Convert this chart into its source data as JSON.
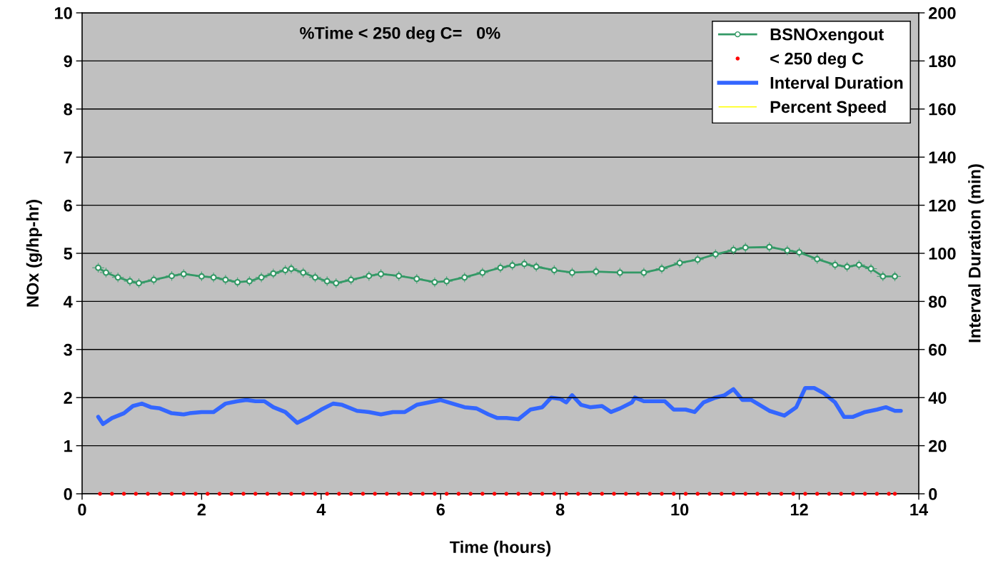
{
  "chart_data": {
    "type": "line",
    "xlabel": "Time (hours)",
    "ylabel": "NOx (g/hp-hr)",
    "y2label": "Interval Duration (min)",
    "annotations": [
      "%Time < 250 deg C=   0%"
    ],
    "xlim": [
      0,
      14
    ],
    "xticks": [
      0,
      2,
      4,
      6,
      8,
      10,
      12,
      14
    ],
    "ylim": [
      0,
      10
    ],
    "yticks": [
      0,
      1,
      2,
      3,
      4,
      5,
      6,
      7,
      8,
      9,
      10
    ],
    "y2lim": [
      0,
      200
    ],
    "y2ticks": [
      0,
      20,
      40,
      60,
      80,
      100,
      120,
      140,
      160,
      180,
      200
    ],
    "grid": "y",
    "legend": "top right",
    "series": [
      {
        "name": "BSNOxengout",
        "color": "#339966",
        "marker": "circle",
        "x": [
          0.27,
          0.4,
          0.6,
          0.8,
          0.95,
          1.2,
          1.5,
          1.7,
          2.0,
          2.2,
          2.4,
          2.6,
          2.8,
          3.0,
          3.2,
          3.4,
          3.5,
          3.7,
          3.9,
          4.1,
          4.25,
          4.5,
          4.8,
          5.0,
          5.3,
          5.6,
          5.9,
          6.1,
          6.4,
          6.7,
          7.0,
          7.2,
          7.4,
          7.6,
          7.9,
          8.2,
          8.6,
          9.0,
          9.4,
          9.7,
          10.0,
          10.3,
          10.6,
          10.9,
          11.1,
          11.5,
          11.8,
          12.0,
          12.3,
          12.6,
          12.8,
          13.0,
          13.2,
          13.4,
          13.6
        ],
        "values": [
          4.7,
          4.6,
          4.5,
          4.42,
          4.38,
          4.45,
          4.53,
          4.57,
          4.52,
          4.5,
          4.45,
          4.4,
          4.42,
          4.5,
          4.58,
          4.65,
          4.68,
          4.6,
          4.5,
          4.42,
          4.38,
          4.45,
          4.53,
          4.57,
          4.53,
          4.47,
          4.4,
          4.42,
          4.5,
          4.6,
          4.7,
          4.75,
          4.78,
          4.72,
          4.65,
          4.6,
          4.62,
          4.6,
          4.6,
          4.68,
          4.8,
          4.87,
          4.98,
          5.07,
          5.12,
          5.13,
          5.06,
          5.02,
          4.88,
          4.76,
          4.72,
          4.76,
          4.68,
          4.52,
          4.52
        ],
        "errors": [
          0.1,
          0.1,
          0.1,
          0.1,
          0.1,
          0.1,
          0.1,
          0.1,
          0.1,
          0.1,
          0.1,
          0.1,
          0.1,
          0.1,
          0.1,
          0.1,
          0.1,
          0.1,
          0.1,
          0.1,
          0.1,
          0.1,
          0.1,
          0.1,
          0.1,
          0.1,
          0.1,
          0.1,
          0.1,
          0.1,
          0.1,
          0.1,
          0.1,
          0.1,
          0.1,
          0.1,
          0.1,
          0.1,
          0.1,
          0.1,
          0.1,
          0.1,
          0.1,
          0.1,
          0.1,
          0.1,
          0.1,
          0.1,
          0.1,
          0.1,
          0.1,
          0.1,
          0.1,
          0.1,
          0.1
        ],
        "xerrors": [
          0.1,
          0.1,
          0.1,
          0.1,
          0.1,
          0.1,
          0.1,
          0.1,
          0.1,
          0.1,
          0.1,
          0.1,
          0.1,
          0.1,
          0.1,
          0.1,
          0.1,
          0.1,
          0.1,
          0.1,
          0.1,
          0.1,
          0.1,
          0.1,
          0.1,
          0.1,
          0.1,
          0.1,
          0.1,
          0.1,
          0.1,
          0.1,
          0.1,
          0.1,
          0.1,
          0.1,
          0.1,
          0.1,
          0.1,
          0.1,
          0.1,
          0.1,
          0.1,
          0.1,
          0.1,
          0.1,
          0.1,
          0.1,
          0.1,
          0.1,
          0.1,
          0.1,
          0.1,
          0.1,
          0.1
        ]
      },
      {
        "name": "< 250 deg C",
        "type": "scatter",
        "color": "#ff0000",
        "marker": "circle",
        "x": [
          0.3,
          0.5,
          0.7,
          0.9,
          1.1,
          1.3,
          1.5,
          1.7,
          1.9,
          2.1,
          2.3,
          2.5,
          2.7,
          2.9,
          3.1,
          3.3,
          3.5,
          3.7,
          3.9,
          4.1,
          4.3,
          4.5,
          4.7,
          4.9,
          5.1,
          5.3,
          5.5,
          5.7,
          5.9,
          6.1,
          6.3,
          6.5,
          6.7,
          6.9,
          7.1,
          7.3,
          7.5,
          7.7,
          7.9,
          8.1,
          8.3,
          8.5,
          8.7,
          8.9,
          9.1,
          9.3,
          9.5,
          9.7,
          9.9,
          10.1,
          10.3,
          10.5,
          10.7,
          10.9,
          11.1,
          11.3,
          11.5,
          11.7,
          11.9,
          12.1,
          12.3,
          12.5,
          12.7,
          12.9,
          13.1,
          13.3,
          13.5,
          13.6
        ],
        "values": [
          0,
          0,
          0,
          0,
          0,
          0,
          0,
          0,
          0,
          0,
          0,
          0,
          0,
          0,
          0,
          0,
          0,
          0,
          0,
          0,
          0,
          0,
          0,
          0,
          0,
          0,
          0,
          0,
          0,
          0,
          0,
          0,
          0,
          0,
          0,
          0,
          0,
          0,
          0,
          0,
          0,
          0,
          0,
          0,
          0,
          0,
          0,
          0,
          0,
          0,
          0,
          0,
          0,
          0,
          0,
          0,
          0,
          0,
          0,
          0,
          0,
          0,
          0,
          0,
          0,
          0,
          0,
          0
        ]
      },
      {
        "name": "Interval Duration",
        "axis": "y2",
        "color": "#3366ff",
        "marker": "none",
        "x": [
          0.27,
          0.35,
          0.5,
          0.7,
          0.85,
          1.0,
          1.15,
          1.3,
          1.5,
          1.7,
          1.8,
          2.0,
          2.2,
          2.4,
          2.6,
          2.75,
          2.9,
          3.05,
          3.2,
          3.4,
          3.6,
          3.8,
          4.0,
          4.2,
          4.35,
          4.6,
          4.8,
          5.0,
          5.2,
          5.4,
          5.6,
          5.8,
          6.0,
          6.2,
          6.4,
          6.6,
          6.8,
          6.95,
          7.1,
          7.3,
          7.5,
          7.7,
          7.85,
          8.0,
          8.1,
          8.2,
          8.35,
          8.5,
          8.7,
          8.85,
          9.0,
          9.2,
          9.25,
          9.4,
          9.6,
          9.75,
          9.9,
          10.1,
          10.25,
          10.4,
          10.6,
          10.75,
          10.9,
          11.05,
          11.2,
          11.5,
          11.75,
          11.95,
          12.1,
          12.25,
          12.4,
          12.6,
          12.75,
          12.9,
          13.1,
          13.3,
          13.45,
          13.6,
          13.7
        ],
        "values": [
          32,
          29,
          31.5,
          33.5,
          36.5,
          37.5,
          36,
          35.5,
          33.5,
          33,
          33.5,
          34,
          34,
          37.5,
          38.5,
          39,
          38.5,
          38.5,
          36,
          34,
          29.5,
          32,
          35,
          37.5,
          37,
          34.5,
          34,
          33,
          34,
          34,
          37,
          38,
          39,
          37.5,
          36,
          35.5,
          33,
          31.5,
          31.5,
          31,
          35,
          36,
          40,
          39.5,
          38,
          41,
          37,
          36,
          36.5,
          34,
          35.5,
          38,
          40,
          38.5,
          38.5,
          38.5,
          35,
          35,
          34,
          38,
          40,
          41,
          43.5,
          39,
          39,
          34.5,
          32.5,
          36,
          44,
          44,
          42,
          38,
          32,
          32,
          34,
          35,
          36,
          34.5,
          34.5
        ]
      },
      {
        "name": "Percent Speed",
        "color": "#ffff00",
        "marker": "none"
      }
    ]
  }
}
